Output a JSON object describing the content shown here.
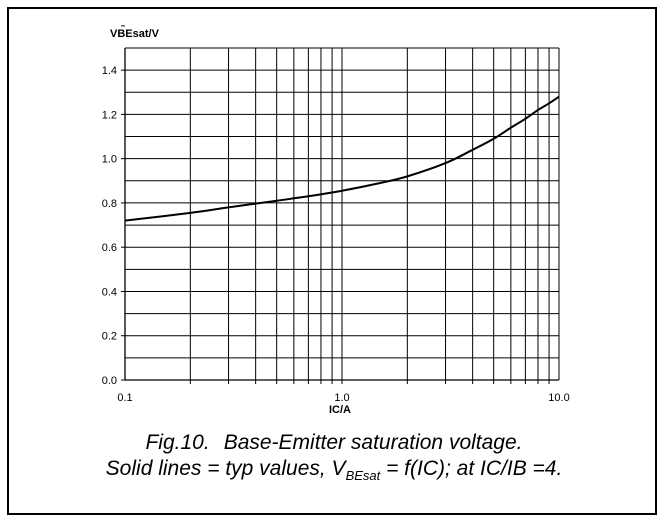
{
  "chart_data": {
    "type": "line",
    "ylabel": "VBEsat/V",
    "xlabel": "IC/A",
    "x_scale": "log",
    "xlim": [
      0.1,
      10.0
    ],
    "ylim": [
      0.0,
      1.5
    ],
    "x_tick_labels": [
      "0.1",
      "1.0",
      "10.0"
    ],
    "y_tick_labels": [
      "0.0",
      "0.2",
      "0.4",
      "0.6",
      "0.8",
      "1.0",
      "1.2",
      "1.4"
    ],
    "grid": true,
    "series": [
      {
        "x": [
          0.1,
          0.2,
          0.3,
          0.5,
          0.7,
          1.0,
          1.5,
          2.0,
          3.0,
          4.0,
          5.0,
          6.0,
          7.0,
          8.0,
          9.0,
          10.0
        ],
        "y": [
          0.72,
          0.755,
          0.78,
          0.81,
          0.83,
          0.855,
          0.89,
          0.92,
          0.98,
          1.04,
          1.09,
          1.14,
          1.18,
          1.22,
          1.25,
          1.28
        ]
      }
    ]
  },
  "caption": {
    "line1_part1": "Fig.10.",
    "line1_part2": "Base-Emitter saturation voltage.",
    "line2_prefix": "Solid lines = typ values, V",
    "line2_sub": "BEsat",
    "line2_suffix": " = f(IC); at IC/IB =4."
  }
}
